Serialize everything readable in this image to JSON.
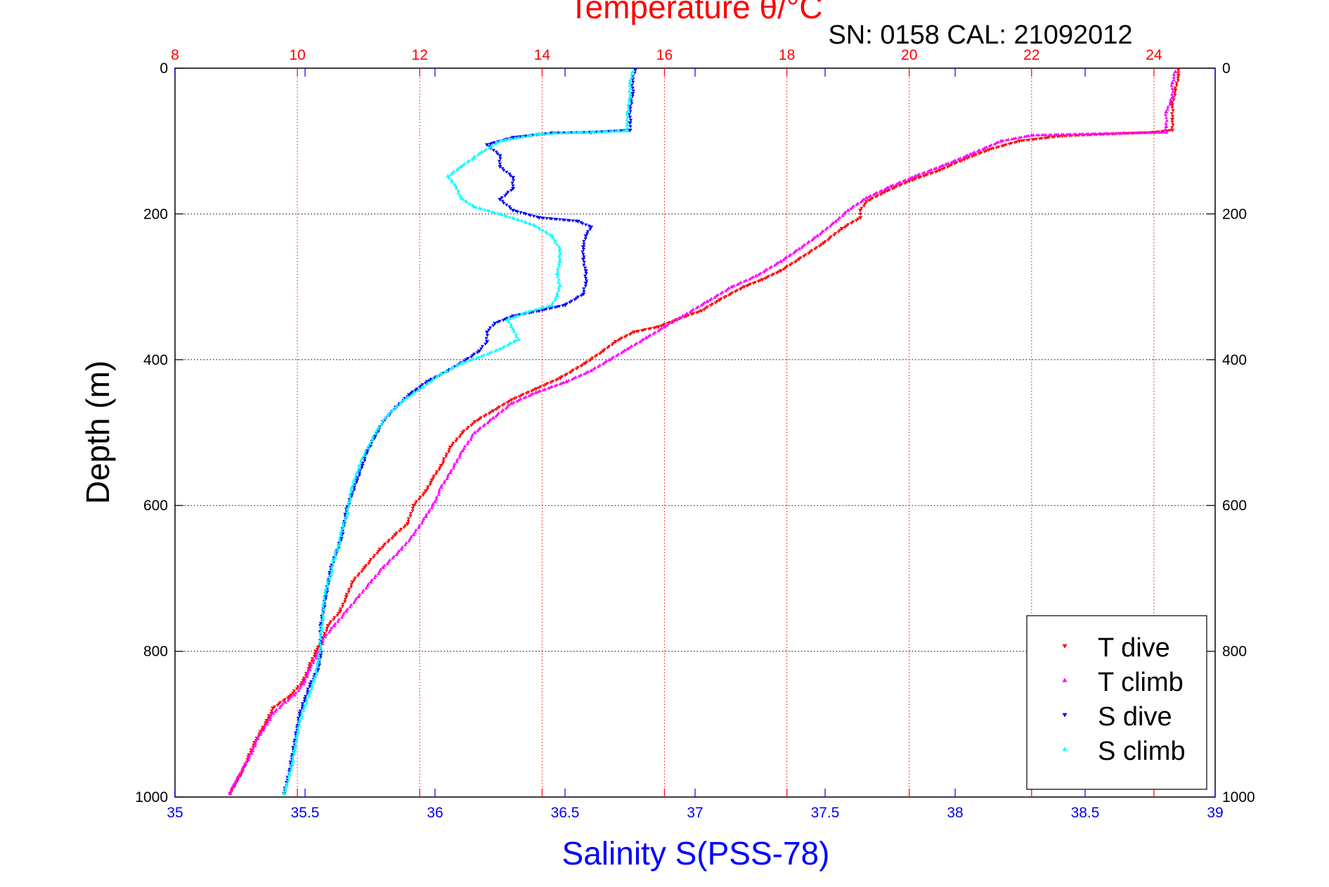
{
  "chart_data": {
    "type": "scatter",
    "title": "Temperature θ/°C",
    "subtitle": "SN: 0158  CAL: 21092012",
    "xlabel": "Salinity S(PSS-78)",
    "ylabel": "Depth (m)",
    "grid": true,
    "legend_position": "bottom-right",
    "colors": {
      "temperature_axis": "#ff0000",
      "salinity_axis": "#0000ff",
      "left_axis": "#000000"
    },
    "x_bottom": {
      "label": "Salinity S(PSS-78)",
      "range": [
        35,
        39
      ],
      "ticks": [
        35,
        35.5,
        36,
        36.5,
        37,
        37.5,
        38,
        38.5,
        39
      ],
      "tick_labels": [
        "35",
        "35.5",
        "36",
        "36.5",
        "37",
        "37.5",
        "38",
        "38.5",
        "39"
      ]
    },
    "x_top": {
      "label": "Temperature θ/°C",
      "range": [
        8,
        25
      ],
      "ticks": [
        8,
        10,
        12,
        14,
        16,
        18,
        20,
        22,
        24
      ],
      "tick_labels": [
        "8",
        "10",
        "12",
        "14",
        "16",
        "18",
        "20",
        "22",
        "24"
      ]
    },
    "y": {
      "label": "Depth (m)",
      "range": [
        0,
        1000
      ],
      "reversed": true,
      "ticks": [
        0,
        200,
        400,
        600,
        800,
        1000
      ],
      "tick_labels": [
        "0",
        "200",
        "400",
        "600",
        "800",
        "1000"
      ]
    },
    "series": [
      {
        "name": "T dive",
        "axis": "temperature",
        "color": "#ff0000",
        "marker": "triangle-down",
        "points": [
          [
            24.4,
            2
          ],
          [
            24.4,
            10
          ],
          [
            24.35,
            30
          ],
          [
            24.3,
            50
          ],
          [
            24.3,
            70
          ],
          [
            24.3,
            85
          ],
          [
            24.0,
            88
          ],
          [
            22.5,
            93
          ],
          [
            21.8,
            100
          ],
          [
            21.3,
            112
          ],
          [
            20.9,
            125
          ],
          [
            20.5,
            140
          ],
          [
            20.0,
            155
          ],
          [
            19.6,
            170
          ],
          [
            19.3,
            183
          ],
          [
            19.2,
            195
          ],
          [
            19.2,
            205
          ],
          [
            18.9,
            220
          ],
          [
            18.6,
            240
          ],
          [
            18.2,
            262
          ],
          [
            17.9,
            278
          ],
          [
            17.6,
            290
          ],
          [
            17.3,
            300
          ],
          [
            16.9,
            318
          ],
          [
            16.6,
            333
          ],
          [
            16.2,
            345
          ],
          [
            15.9,
            355
          ],
          [
            15.5,
            362
          ],
          [
            15.2,
            375
          ],
          [
            15.0,
            388
          ],
          [
            14.7,
            405
          ],
          [
            14.3,
            425
          ],
          [
            13.9,
            440
          ],
          [
            13.5,
            455
          ],
          [
            13.2,
            470
          ],
          [
            12.9,
            485
          ],
          [
            12.7,
            500
          ],
          [
            12.5,
            520
          ],
          [
            12.35,
            545
          ],
          [
            12.2,
            565
          ],
          [
            12.1,
            580
          ],
          [
            11.9,
            600
          ],
          [
            11.8,
            625
          ],
          [
            11.6,
            640
          ],
          [
            11.35,
            660
          ],
          [
            11.1,
            685
          ],
          [
            10.9,
            705
          ],
          [
            10.8,
            725
          ],
          [
            10.7,
            745
          ],
          [
            10.5,
            765
          ],
          [
            10.4,
            785
          ],
          [
            10.3,
            800
          ],
          [
            10.2,
            820
          ],
          [
            10.1,
            840
          ],
          [
            9.9,
            860
          ],
          [
            9.6,
            878
          ],
          [
            9.5,
            895
          ],
          [
            9.4,
            910
          ],
          [
            9.3,
            925
          ],
          [
            9.2,
            945
          ],
          [
            9.1,
            965
          ],
          [
            9.0,
            980
          ],
          [
            8.9,
            995
          ]
        ]
      },
      {
        "name": "T climb",
        "axis": "temperature",
        "color": "#ff00ff",
        "marker": "triangle-up",
        "points": [
          [
            24.35,
            5
          ],
          [
            24.3,
            20
          ],
          [
            24.3,
            40
          ],
          [
            24.2,
            60
          ],
          [
            24.2,
            80
          ],
          [
            24.2,
            88
          ],
          [
            23.5,
            89
          ],
          [
            22.0,
            92
          ],
          [
            21.5,
            100
          ],
          [
            21.0,
            118
          ],
          [
            20.6,
            132
          ],
          [
            20.1,
            148
          ],
          [
            19.7,
            162
          ],
          [
            19.3,
            178
          ],
          [
            19.0,
            195
          ],
          [
            18.8,
            210
          ],
          [
            18.5,
            230
          ],
          [
            18.2,
            248
          ],
          [
            17.9,
            265
          ],
          [
            17.5,
            285
          ],
          [
            17.1,
            300
          ],
          [
            16.7,
            320
          ],
          [
            16.3,
            340
          ],
          [
            16.0,
            355
          ],
          [
            15.7,
            370
          ],
          [
            15.4,
            385
          ],
          [
            15.1,
            400
          ],
          [
            14.8,
            415
          ],
          [
            14.4,
            430
          ],
          [
            13.9,
            445
          ],
          [
            13.5,
            460
          ],
          [
            13.2,
            480
          ],
          [
            12.9,
            500
          ],
          [
            12.7,
            525
          ],
          [
            12.5,
            555
          ],
          [
            12.35,
            575
          ],
          [
            12.25,
            595
          ],
          [
            12.1,
            615
          ],
          [
            11.9,
            640
          ],
          [
            11.7,
            660
          ],
          [
            11.4,
            685
          ],
          [
            11.2,
            705
          ],
          [
            11.0,
            725
          ],
          [
            10.8,
            745
          ],
          [
            10.6,
            765
          ],
          [
            10.45,
            780
          ],
          [
            10.35,
            800
          ],
          [
            10.2,
            825
          ],
          [
            10.1,
            845
          ],
          [
            9.95,
            860
          ],
          [
            9.8,
            870
          ],
          [
            9.6,
            885
          ],
          [
            9.5,
            900
          ],
          [
            9.35,
            920
          ],
          [
            9.25,
            940
          ],
          [
            9.15,
            955
          ],
          [
            9.05,
            970
          ],
          [
            8.95,
            985
          ],
          [
            8.9,
            995
          ]
        ]
      },
      {
        "name": "S dive",
        "axis": "salinity",
        "color": "#0000ff",
        "marker": "triangle-down",
        "points": [
          [
            36.77,
            2
          ],
          [
            36.76,
            15
          ],
          [
            36.76,
            35
          ],
          [
            36.75,
            55
          ],
          [
            36.75,
            75
          ],
          [
            36.75,
            85
          ],
          [
            36.6,
            88
          ],
          [
            36.45,
            89
          ],
          [
            36.3,
            95
          ],
          [
            36.2,
            105
          ],
          [
            36.25,
            120
          ],
          [
            36.25,
            135
          ],
          [
            36.3,
            150
          ],
          [
            36.3,
            165
          ],
          [
            36.25,
            180
          ],
          [
            36.3,
            195
          ],
          [
            36.4,
            205
          ],
          [
            36.55,
            210
          ],
          [
            36.6,
            218
          ],
          [
            36.58,
            230
          ],
          [
            36.57,
            245
          ],
          [
            36.57,
            262
          ],
          [
            36.58,
            278
          ],
          [
            36.58,
            295
          ],
          [
            36.57,
            310
          ],
          [
            36.5,
            325
          ],
          [
            36.4,
            333
          ],
          [
            36.3,
            340
          ],
          [
            36.23,
            350
          ],
          [
            36.2,
            362
          ],
          [
            36.2,
            375
          ],
          [
            36.17,
            388
          ],
          [
            36.12,
            400
          ],
          [
            36.05,
            415
          ],
          [
            35.97,
            430
          ],
          [
            35.9,
            448
          ],
          [
            35.85,
            465
          ],
          [
            35.8,
            485
          ],
          [
            35.77,
            505
          ],
          [
            35.74,
            525
          ],
          [
            35.72,
            545
          ],
          [
            35.7,
            565
          ],
          [
            35.68,
            585
          ],
          [
            35.66,
            605
          ],
          [
            35.65,
            625
          ],
          [
            35.64,
            645
          ],
          [
            35.62,
            665
          ],
          [
            35.6,
            685
          ],
          [
            35.59,
            705
          ],
          [
            35.58,
            725
          ],
          [
            35.57,
            745
          ],
          [
            35.56,
            765
          ],
          [
            35.56,
            785
          ],
          [
            35.56,
            805
          ],
          [
            35.55,
            825
          ],
          [
            35.52,
            845
          ],
          [
            35.5,
            865
          ],
          [
            35.48,
            885
          ],
          [
            35.47,
            905
          ],
          [
            35.46,
            925
          ],
          [
            35.45,
            945
          ],
          [
            35.44,
            965
          ],
          [
            35.43,
            980
          ],
          [
            35.42,
            995
          ]
        ]
      },
      {
        "name": "S climb",
        "axis": "salinity",
        "color": "#00ffff",
        "marker": "triangle-up",
        "points": [
          [
            36.76,
            5
          ],
          [
            36.75,
            20
          ],
          [
            36.75,
            40
          ],
          [
            36.74,
            60
          ],
          [
            36.74,
            78
          ],
          [
            36.74,
            86
          ],
          [
            36.55,
            88
          ],
          [
            36.4,
            90
          ],
          [
            36.25,
            100
          ],
          [
            36.18,
            115
          ],
          [
            36.1,
            135
          ],
          [
            36.05,
            148
          ],
          [
            36.08,
            162
          ],
          [
            36.1,
            178
          ],
          [
            36.15,
            190
          ],
          [
            36.25,
            200
          ],
          [
            36.38,
            215
          ],
          [
            36.45,
            230
          ],
          [
            36.48,
            248
          ],
          [
            36.48,
            265
          ],
          [
            36.47,
            282
          ],
          [
            36.48,
            298
          ],
          [
            36.47,
            312
          ],
          [
            36.45,
            325
          ],
          [
            36.35,
            335
          ],
          [
            36.28,
            345
          ],
          [
            36.3,
            358
          ],
          [
            36.32,
            372
          ],
          [
            36.25,
            385
          ],
          [
            36.18,
            395
          ],
          [
            36.1,
            405
          ],
          [
            36.02,
            420
          ],
          [
            35.95,
            438
          ],
          [
            35.88,
            455
          ],
          [
            35.82,
            475
          ],
          [
            35.78,
            495
          ],
          [
            35.75,
            515
          ],
          [
            35.72,
            535
          ],
          [
            35.7,
            555
          ],
          [
            35.68,
            575
          ],
          [
            35.67,
            595
          ],
          [
            35.66,
            615
          ],
          [
            35.64,
            635
          ],
          [
            35.63,
            655
          ],
          [
            35.61,
            675
          ],
          [
            35.6,
            695
          ],
          [
            35.58,
            715
          ],
          [
            35.57,
            735
          ],
          [
            35.57,
            755
          ],
          [
            35.56,
            775
          ],
          [
            35.56,
            795
          ],
          [
            35.55,
            815
          ],
          [
            35.54,
            835
          ],
          [
            35.52,
            855
          ],
          [
            35.5,
            875
          ],
          [
            35.48,
            895
          ],
          [
            35.47,
            915
          ],
          [
            35.46,
            935
          ],
          [
            35.45,
            955
          ],
          [
            35.44,
            970
          ],
          [
            35.43,
            985
          ],
          [
            35.42,
            995
          ]
        ]
      }
    ]
  }
}
